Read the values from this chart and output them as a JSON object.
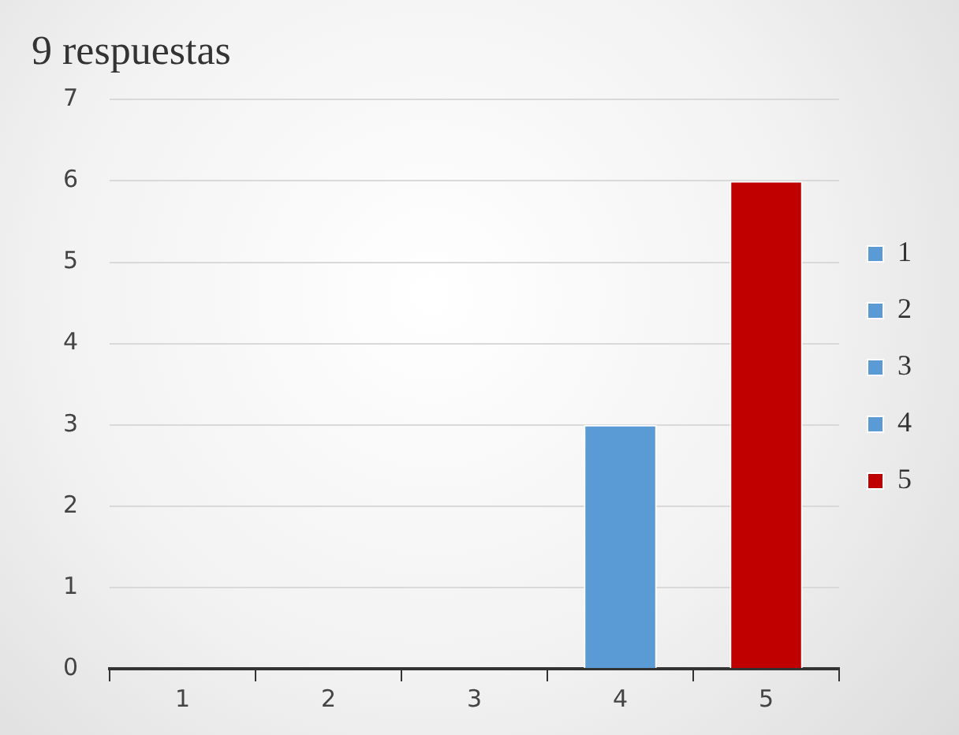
{
  "chart_data": {
    "type": "bar",
    "title": "9 respuestas",
    "categories": [
      "1",
      "2",
      "3",
      "4",
      "5"
    ],
    "series": [
      {
        "name": "1",
        "color": "#5b9bd5",
        "values": [
          0,
          null,
          null,
          null,
          null
        ]
      },
      {
        "name": "2",
        "color": "#5b9bd5",
        "values": [
          null,
          0,
          null,
          null,
          null
        ]
      },
      {
        "name": "3",
        "color": "#5b9bd5",
        "values": [
          null,
          null,
          0,
          null,
          null
        ]
      },
      {
        "name": "4",
        "color": "#5b9bd5",
        "values": [
          null,
          null,
          null,
          3,
          null
        ]
      },
      {
        "name": "5",
        "color": "#c00000",
        "values": [
          null,
          null,
          null,
          null,
          6
        ]
      }
    ],
    "ylim": [
      0,
      7
    ],
    "yticks": [
      0,
      1,
      2,
      3,
      4,
      5,
      6,
      7
    ],
    "grid": "y",
    "legend": "right"
  }
}
